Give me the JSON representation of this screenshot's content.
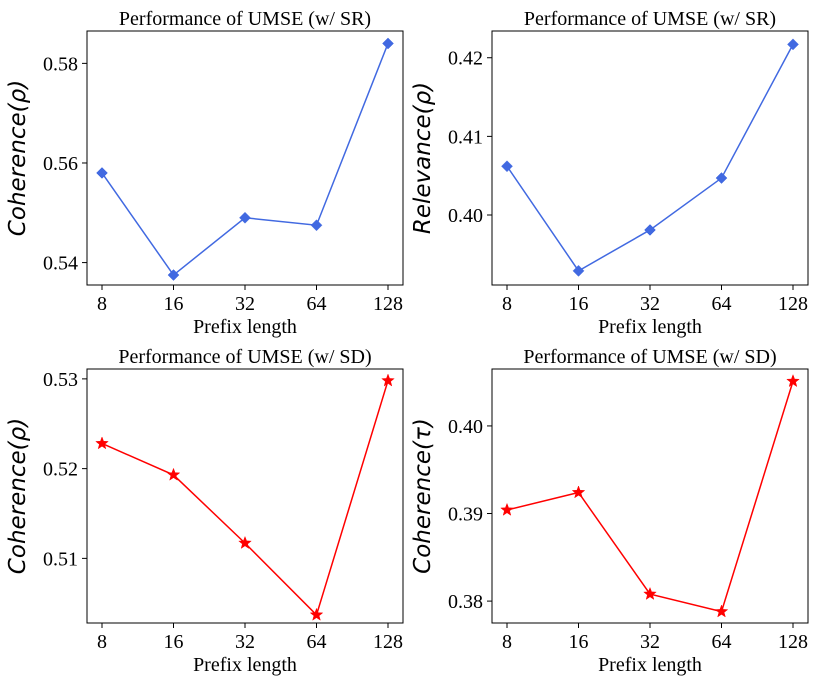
{
  "chart_data": [
    {
      "type": "line",
      "title": "Performance of UMSE (w/ SR)",
      "xlabel": "Prefix length",
      "ylabel": "Coherence(ρ)",
      "categories": [
        "8",
        "16",
        "32",
        "64",
        "128"
      ],
      "series": [
        {
          "name": "UMSE (w/ SR)",
          "values": [
            0.558,
            0.5375,
            0.549,
            0.5475,
            0.584
          ]
        }
      ],
      "yticks": [
        "0.54",
        "0.56",
        "0.58"
      ],
      "ytick_values": [
        0.54,
        0.56,
        0.58
      ],
      "ylim": [
        0.5355,
        0.5865
      ],
      "color": "#4169e1",
      "marker": "diamond"
    },
    {
      "type": "line",
      "title": "Performance of UMSE (w/ SR)",
      "xlabel": "Prefix length",
      "ylabel": "Relevance(ρ)",
      "categories": [
        "8",
        "16",
        "32",
        "64",
        "128"
      ],
      "series": [
        {
          "name": "UMSE (w/ SR)",
          "values": [
            0.4062,
            0.3929,
            0.3981,
            0.4047,
            0.4217
          ]
        }
      ],
      "yticks": [
        "0.40",
        "0.41",
        "0.42"
      ],
      "ytick_values": [
        0.4,
        0.41,
        0.42
      ],
      "ylim": [
        0.3911,
        0.4234
      ],
      "color": "#4169e1",
      "marker": "diamond"
    },
    {
      "type": "line",
      "title": "Performance of UMSE (w/ SD)",
      "xlabel": "Prefix length",
      "ylabel": "Coherence(ρ)",
      "categories": [
        "8",
        "16",
        "32",
        "64",
        "128"
      ],
      "series": [
        {
          "name": "UMSE (w/ SD)",
          "values": [
            0.5228,
            0.5193,
            0.5117,
            0.5037,
            0.5298
          ]
        }
      ],
      "yticks": [
        "0.51",
        "0.52",
        "0.53"
      ],
      "ytick_values": [
        0.51,
        0.52,
        0.53
      ],
      "ylim": [
        0.5028,
        0.5311
      ],
      "color": "#ff0000",
      "marker": "star"
    },
    {
      "type": "line",
      "title": "Performance of UMSE (w/ SD)",
      "xlabel": "Prefix length",
      "ylabel": "Coherence(τ)",
      "categories": [
        "8",
        "16",
        "32",
        "64",
        "128"
      ],
      "series": [
        {
          "name": "UMSE (w/ SD)",
          "values": [
            0.3904,
            0.3924,
            0.3808,
            0.3788,
            0.4051
          ]
        }
      ],
      "yticks": [
        "0.38",
        "0.39",
        "0.40"
      ],
      "ytick_values": [
        0.38,
        0.39,
        0.4
      ],
      "ylim": [
        0.3775,
        0.4065
      ],
      "color": "#ff0000",
      "marker": "star"
    }
  ]
}
